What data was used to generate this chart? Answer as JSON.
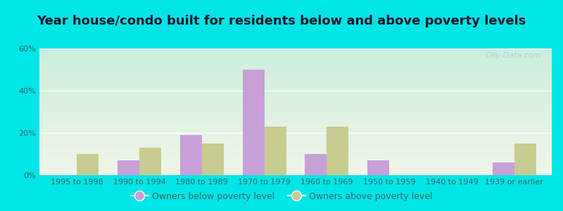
{
  "title": "Year house/condo built for residents below and above poverty levels",
  "categories": [
    "1995 to 1998",
    "1990 to 1994",
    "1980 to 1989",
    "1970 to 1979",
    "1960 to 1969",
    "1950 to 1959",
    "1940 to 1949",
    "1939 or earlier"
  ],
  "below_poverty": [
    0,
    7,
    19,
    50,
    10,
    7,
    0,
    6
  ],
  "above_poverty": [
    10,
    13,
    15,
    23,
    23,
    0,
    0,
    15
  ],
  "below_color": "#c8a0d8",
  "above_color": "#c8cc90",
  "bg_outer": "#00e5e5",
  "ylim": [
    0,
    60
  ],
  "yticks": [
    0,
    20,
    40,
    60
  ],
  "ytick_labels": [
    "0%",
    "20%",
    "40%",
    "60%"
  ],
  "legend_below": "Owners below poverty level",
  "legend_above": "Owners above poverty level",
  "title_fontsize": 13,
  "tick_fontsize": 8,
  "legend_fontsize": 9,
  "bar_width": 0.35,
  "watermark": "City-Data.com",
  "tick_color": "#336666",
  "gradient_top": "#cceedd",
  "gradient_bottom": "#f0f5e8"
}
